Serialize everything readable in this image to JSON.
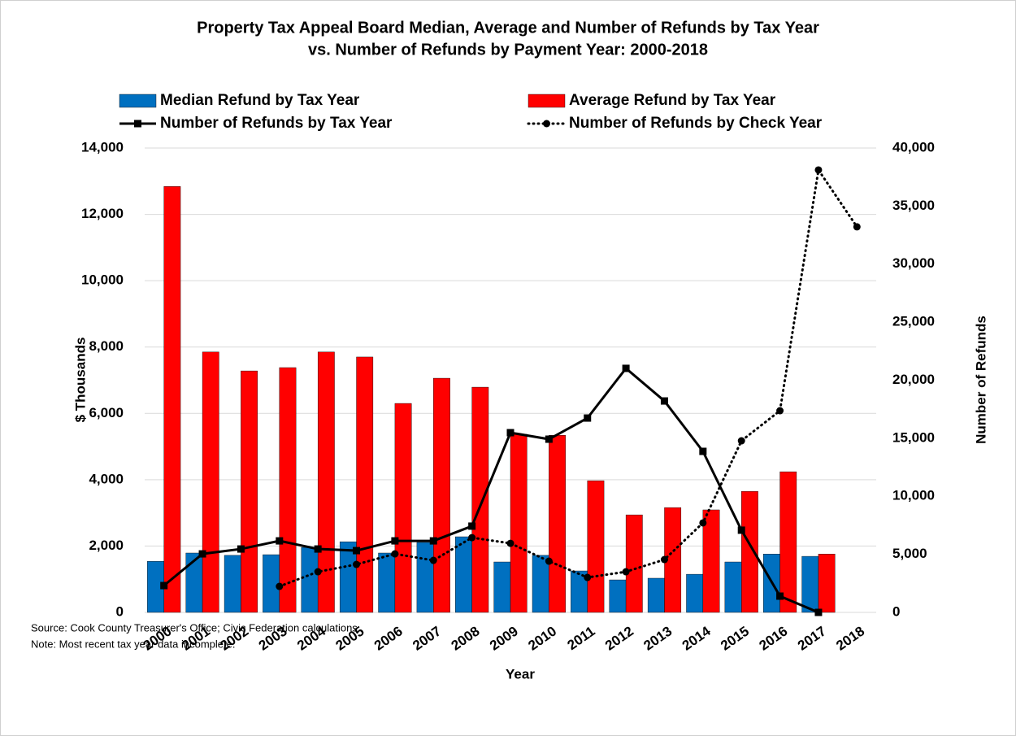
{
  "chart_data": {
    "type": "bar",
    "title": [
      "Property Tax Appeal Board Median, Average and Number of Refunds by Tax Year",
      "vs. Number of Refunds by Payment Year: 2000-2018"
    ],
    "x_label": "Year",
    "y_label": "$ Thousands",
    "y2_label": "Number of Refunds",
    "notes": [
      "Source: Cook County Treasurer's Office; Civic Federation calculations.",
      "Note: Most recent tax year data incomplete."
    ],
    "categories": [
      "2000",
      "2001",
      "2002",
      "2003",
      "2004",
      "2005",
      "2006",
      "2007",
      "2008",
      "2009",
      "2010",
      "2011",
      "2012",
      "2013",
      "2014",
      "2015",
      "2016",
      "2017",
      "2018"
    ],
    "series": [
      {
        "name": "Median Refund by Tax Year",
        "type": "bar",
        "color": "#0070c0",
        "values": [
          1540,
          1790,
          1720,
          1740,
          1960,
          2130,
          1790,
          2110,
          2280,
          1520,
          1720,
          1250,
          980,
          1030,
          1150,
          1520,
          1760,
          1690,
          null
        ]
      },
      {
        "name": "Average Refund by Tax Year",
        "type": "bar",
        "color": "#ff0000",
        "values": [
          12840,
          7850,
          7280,
          7380,
          7850,
          7700,
          6300,
          7060,
          6790,
          5370,
          5340,
          3970,
          2940,
          3160,
          3090,
          3650,
          4240,
          1760,
          null
        ]
      },
      {
        "name": "Number of Refunds by Tax Year",
        "type": "line",
        "color": "#000000",
        "axis": "y2",
        "line_style": "solid",
        "marker": "square",
        "values": [
          2310,
          5040,
          5460,
          6160,
          5460,
          5320,
          6160,
          6160,
          7430,
          15480,
          14920,
          16740,
          21020,
          18210,
          13870,
          7080,
          1400,
          0,
          null
        ]
      },
      {
        "name": "Number of Refunds by Check Year",
        "type": "line",
        "color": "#000000",
        "axis": "y2",
        "line_style": "dotted",
        "marker": "circle",
        "values": [
          null,
          null,
          null,
          2240,
          3500,
          4130,
          5040,
          4480,
          6440,
          5950,
          4410,
          3010,
          3500,
          4550,
          7710,
          14780,
          17370,
          38110,
          33210
        ]
      }
    ],
    "ylim": [
      0,
      14000
    ],
    "yticks": [
      0,
      {
        "value": 2000,
        "label": "2,000"
      },
      {
        "value": 4000,
        "label": "4,000"
      },
      {
        "value": 6000,
        "label": "6,000"
      },
      {
        "value": 8000,
        "label": "8,000"
      },
      {
        "value": 10000,
        "label": "10,000"
      },
      {
        "value": 12000,
        "label": "12,000"
      },
      {
        "value": 14000,
        "label": "14,000"
      }
    ],
    "y2lim": [
      0,
      40000
    ],
    "y2ticks": [
      0,
      {
        "value": 5000,
        "label": "5,000"
      },
      {
        "value": 10000,
        "label": "10,000"
      },
      {
        "value": 15000,
        "label": "15,000"
      },
      {
        "value": 20000,
        "label": "20,000"
      },
      {
        "value": 25000,
        "label": "25,000"
      },
      {
        "value": 30000,
        "label": "30,000"
      },
      {
        "value": 35000,
        "label": "35,000"
      },
      {
        "value": 40000,
        "label": "40,000"
      }
    ],
    "grid": true,
    "legend": "top"
  }
}
